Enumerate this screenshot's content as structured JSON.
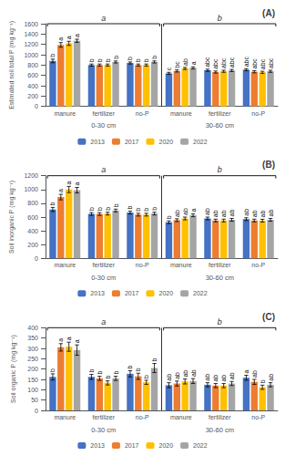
{
  "chart_data": [
    {
      "type": "bar",
      "title": "(A)",
      "ylabel": "Estimated soil total P (mg kg⁻¹)",
      "ylim": [
        0,
        1600
      ],
      "yticks": [
        0,
        200,
        400,
        600,
        800,
        1000,
        1200,
        1400,
        1600
      ],
      "categories": [
        "manure",
        "fertilizer",
        "no-P",
        "manure",
        "fertilizer",
        "no-P"
      ],
      "depth_labels": [
        "0-30 cm",
        "30-60 cm"
      ],
      "bracket_labels": [
        "a",
        "b"
      ],
      "grid": false,
      "legend": "bottom",
      "series": [
        {
          "name": "2013",
          "color": "#4472C4",
          "values": [
            880,
            800,
            840,
            640,
            700,
            710
          ],
          "errors": [
            35,
            20,
            20,
            20,
            20,
            20
          ],
          "sig_labels": [
            "b",
            "b",
            "b",
            "c",
            "abc",
            "abc"
          ]
        },
        {
          "name": "2017",
          "color": "#ED7D31",
          "values": [
            1190,
            800,
            800,
            685,
            665,
            670
          ],
          "errors": [
            45,
            20,
            20,
            20,
            20,
            20
          ],
          "sig_labels": [
            "a",
            "b",
            "b",
            "bc",
            "abc",
            "abc"
          ]
        },
        {
          "name": "2020",
          "color": "#FFC000",
          "values": [
            1220,
            800,
            800,
            735,
            680,
            660
          ],
          "errors": [
            40,
            20,
            20,
            20,
            20,
            20
          ],
          "sig_labels": [
            "a",
            "b",
            "b",
            "ab",
            "abc",
            "abc"
          ]
        },
        {
          "name": "2022",
          "color": "#A5A5A5",
          "values": [
            1270,
            860,
            860,
            745,
            695,
            680
          ],
          "errors": [
            30,
            20,
            20,
            20,
            20,
            20
          ],
          "sig_labels": [
            "a",
            "b",
            "b",
            "a",
            "abc",
            "abc"
          ]
        }
      ]
    },
    {
      "type": "bar",
      "title": "(B)",
      "ylabel": "Soil inorganic P (mg kg⁻¹)",
      "ylim": [
        0,
        1200
      ],
      "yticks": [
        0,
        200,
        400,
        600,
        800,
        1000,
        1200
      ],
      "categories": [
        "manure",
        "fertilizer",
        "no-P",
        "manure",
        "fertilizer",
        "no-P"
      ],
      "depth_labels": [
        "0-30 cm",
        "30-60 cm"
      ],
      "bracket_labels": [
        "a",
        "b"
      ],
      "grid": false,
      "legend": "bottom",
      "series": [
        {
          "name": "2013",
          "color": "#4472C4",
          "values": [
            710,
            645,
            665,
            525,
            580,
            570
          ],
          "errors": [
            30,
            20,
            20,
            20,
            20,
            20
          ],
          "sig_labels": [
            "b",
            "b",
            "b",
            "b",
            "ab",
            "ab"
          ]
        },
        {
          "name": "2017",
          "color": "#ED7D31",
          "values": [
            890,
            645,
            635,
            555,
            550,
            550
          ],
          "errors": [
            40,
            20,
            20,
            20,
            20,
            20
          ],
          "sig_labels": [
            "a",
            "b",
            "b",
            "ab",
            "ab",
            "ab"
          ]
        },
        {
          "name": "2020",
          "color": "#FFC000",
          "values": [
            1000,
            650,
            635,
            580,
            550,
            548
          ],
          "errors": [
            45,
            20,
            20,
            20,
            20,
            20
          ],
          "sig_labels": [
            "a",
            "b",
            "b",
            "ab",
            "ab",
            "ab"
          ]
        },
        {
          "name": "2022",
          "color": "#A5A5A5",
          "values": [
            990,
            695,
            650,
            625,
            560,
            560
          ],
          "errors": [
            40,
            20,
            20,
            20,
            20,
            20
          ],
          "sig_labels": [
            "a",
            "b",
            "b",
            "a",
            "ab",
            "ab"
          ]
        }
      ]
    },
    {
      "type": "bar",
      "title": "(C)",
      "ylabel": "Soil organic P (mg kg⁻¹)",
      "ylim": [
        0,
        400
      ],
      "yticks": [
        0,
        50,
        100,
        150,
        200,
        250,
        300,
        350,
        400
      ],
      "categories": [
        "manure",
        "fertilizer",
        "no-P",
        "manure",
        "fertilizer",
        "no-P"
      ],
      "depth_labels": [
        "0-30 cm",
        "30-60 cm"
      ],
      "bracket_labels": [
        "a",
        "b"
      ],
      "grid": false,
      "legend": "bottom",
      "series": [
        {
          "name": "2013",
          "color": "#4472C4",
          "values": [
            162,
            162,
            177,
            122,
            124,
            158
          ],
          "errors": [
            15,
            12,
            15,
            12,
            10,
            12
          ],
          "sig_labels": [
            "b",
            "b",
            "b",
            "ab",
            "ab",
            "a"
          ]
        },
        {
          "name": "2017",
          "color": "#ED7D31",
          "values": [
            305,
            155,
            165,
            130,
            120,
            138
          ],
          "errors": [
            18,
            10,
            15,
            12,
            10,
            12
          ],
          "sig_labels": [
            "a",
            "b",
            "b",
            "ab",
            "ab",
            "ab"
          ]
        },
        {
          "name": "2020",
          "color": "#FFC000",
          "values": [
            308,
            133,
            136,
            140,
            120,
            112
          ],
          "errors": [
            22,
            10,
            10,
            12,
            10,
            10
          ],
          "sig_labels": [
            "a",
            "b",
            "b",
            "ab",
            "ab",
            "b"
          ]
        },
        {
          "name": "2022",
          "color": "#A5A5A5",
          "values": [
            292,
            155,
            205,
            142,
            130,
            124
          ],
          "errors": [
            25,
            10,
            22,
            12,
            10,
            10
          ],
          "sig_labels": [
            "a",
            "b",
            "b",
            "ab",
            "ab",
            "ab"
          ]
        }
      ]
    }
  ]
}
